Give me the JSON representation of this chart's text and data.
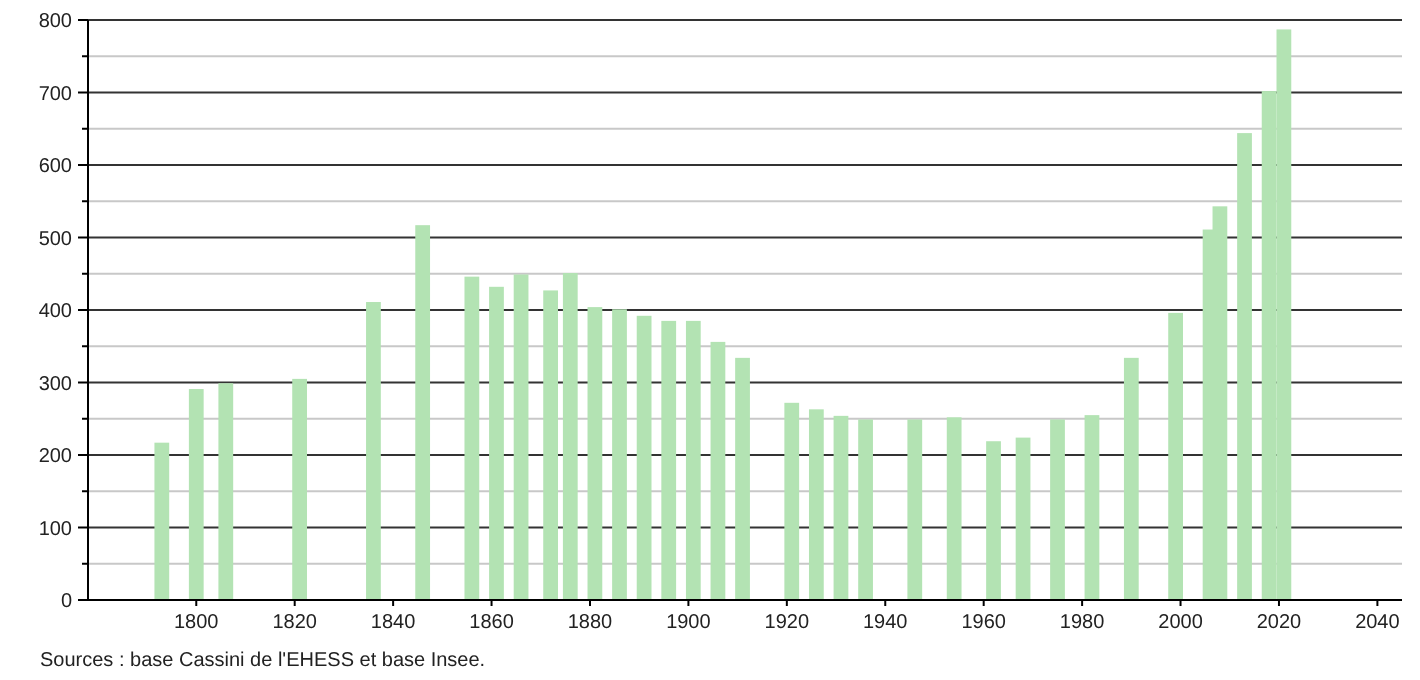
{
  "chart_data": {
    "type": "bar",
    "x": [
      1793,
      1800,
      1806,
      1821,
      1836,
      1846,
      1856,
      1861,
      1866,
      1872,
      1876,
      1881,
      1886,
      1891,
      1896,
      1901,
      1906,
      1911,
      1921,
      1926,
      1931,
      1936,
      1946,
      1954,
      1962,
      1968,
      1975,
      1982,
      1990,
      1999,
      2006,
      2008,
      2013,
      2018,
      2021
    ],
    "values": [
      217,
      291,
      299,
      305,
      411,
      517,
      446,
      432,
      449,
      427,
      451,
      404,
      401,
      392,
      385,
      385,
      356,
      334,
      272,
      263,
      254,
      249,
      249,
      252,
      219,
      224,
      249,
      255,
      334,
      396,
      511,
      543,
      644,
      702,
      787
    ],
    "color": "#b3e3b3",
    "xlim": [
      1778,
      2045
    ],
    "xticks": [
      1800,
      1820,
      1840,
      1860,
      1880,
      1900,
      1920,
      1940,
      1960,
      1980,
      2000,
      2020,
      2040
    ],
    "ylim": [
      0,
      800
    ],
    "yticks": [
      0,
      {
        "value": 50,
        "label": null
      },
      100,
      {
        "value": 150,
        "label": null
      },
      200,
      {
        "value": 250,
        "label": null
      },
      300,
      {
        "value": 350,
        "label": null
      },
      400,
      {
        "value": 450,
        "label": null
      },
      500,
      {
        "value": 550,
        "label": null
      },
      600,
      {
        "value": 650,
        "label": null
      },
      700,
      {
        "value": 750,
        "label": null
      },
      800
    ],
    "grid": "y",
    "annotations": [
      "Sources : base Cassini de l'EHESS et base Insee."
    ]
  }
}
